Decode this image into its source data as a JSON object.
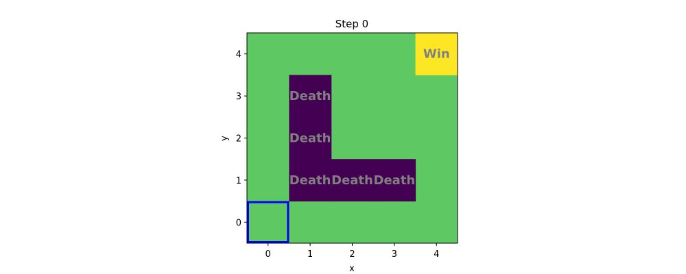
{
  "title": "Step 0",
  "xlabel": "x",
  "ylabel": "y",
  "colors": {
    "safe": "#5ec962",
    "death": "#440154",
    "win": "#fde725",
    "agent_outline": "#0000ff",
    "cell_text": "#808080"
  },
  "grid": {
    "x_ticks": [
      "0",
      "1",
      "2",
      "3",
      "4"
    ],
    "y_ticks": [
      "0",
      "1",
      "2",
      "3",
      "4"
    ],
    "cells": [
      {
        "x": 1,
        "y": 3,
        "kind": "death",
        "label": "Death"
      },
      {
        "x": 1,
        "y": 2,
        "kind": "death",
        "label": "Death"
      },
      {
        "x": 1,
        "y": 1,
        "kind": "death",
        "label": "Death"
      },
      {
        "x": 2,
        "y": 1,
        "kind": "death",
        "label": "Death"
      },
      {
        "x": 3,
        "y": 1,
        "kind": "death",
        "label": "Death"
      },
      {
        "x": 4,
        "y": 4,
        "kind": "win",
        "label": "Win"
      }
    ],
    "agent": {
      "x": 0,
      "y": 0
    }
  }
}
